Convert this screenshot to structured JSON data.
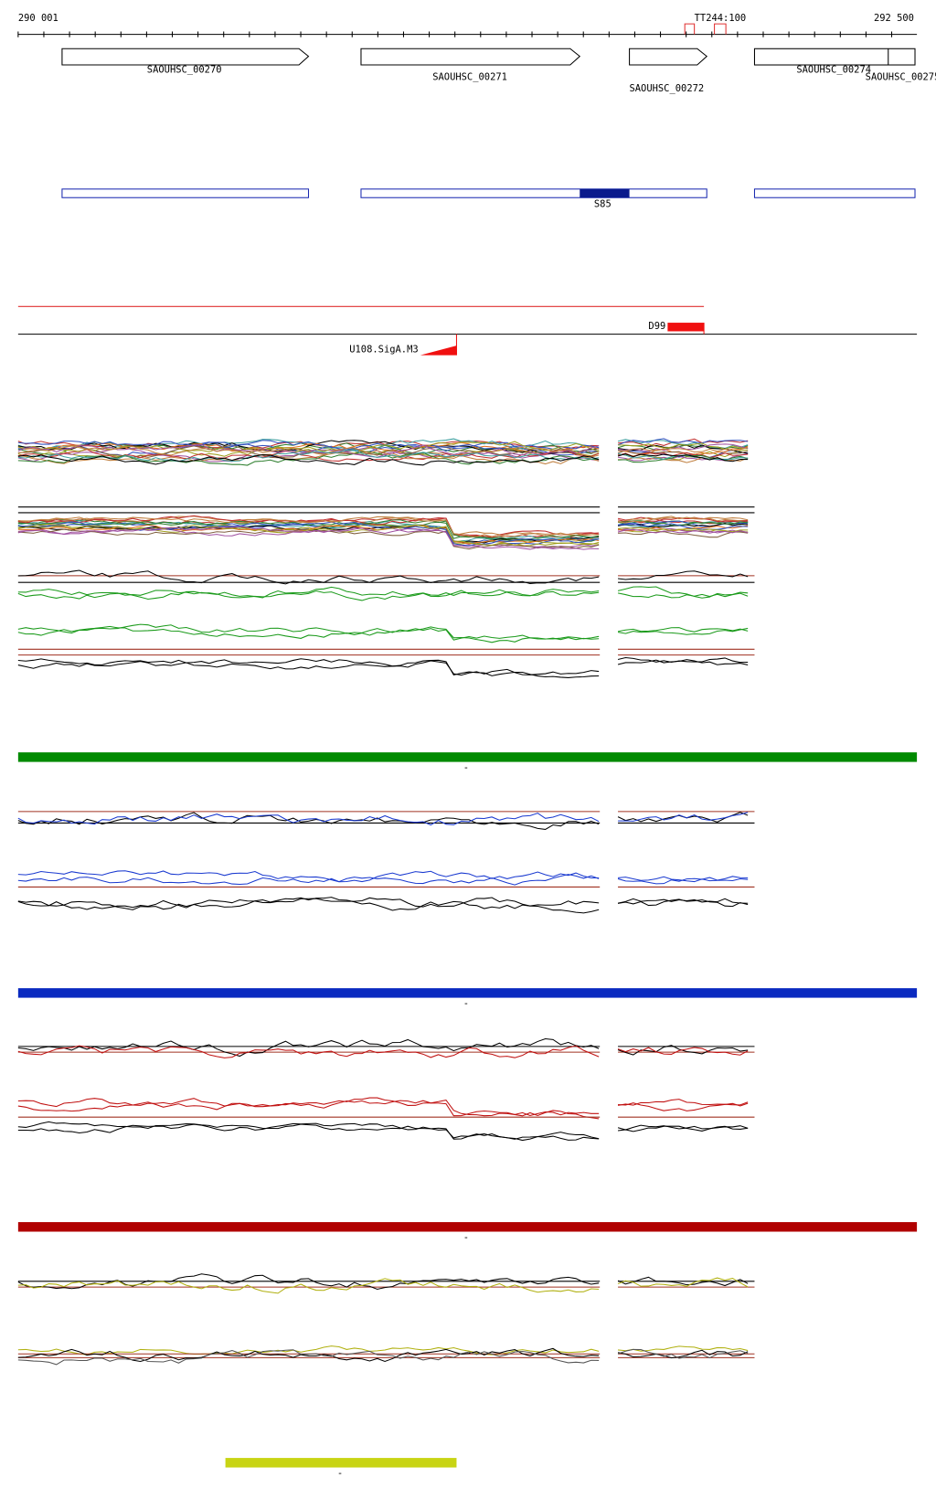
{
  "ruler": {
    "start": "290 001",
    "end": "292 500",
    "marker": "TT244:100"
  },
  "genes": [
    {
      "label": "SAOUHSC_00270"
    },
    {
      "label": "SAOUHSC_00271"
    },
    {
      "label": "SAOUHSC_00272"
    },
    {
      "label": "SAOUHSC_00274"
    },
    {
      "label": "SAOUHSC_00275"
    }
  ],
  "segment": {
    "label": "S85"
  },
  "features": {
    "terminator": "D99",
    "promoter": "U108.SigA.M3"
  },
  "tracks": [
    {
      "label": "-"
    },
    {
      "label": "-"
    },
    {
      "label": "-"
    },
    {
      "label": "-"
    }
  ]
}
